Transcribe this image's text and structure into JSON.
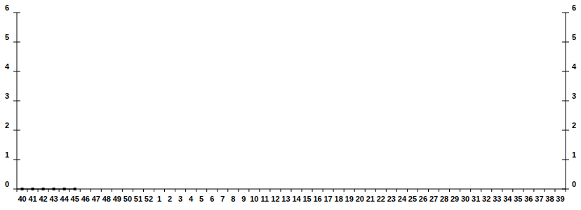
{
  "chart_data": {
    "type": "line",
    "categories": [
      "40",
      "41",
      "42",
      "43",
      "44",
      "45",
      "46",
      "47",
      "48",
      "49",
      "50",
      "51",
      "52",
      "1",
      "2",
      "3",
      "4",
      "5",
      "6",
      "7",
      "8",
      "9",
      "10",
      "11",
      "12",
      "13",
      "14",
      "15",
      "16",
      "17",
      "18",
      "19",
      "20",
      "21",
      "22",
      "23",
      "24",
      "25",
      "26",
      "27",
      "28",
      "29",
      "30",
      "31",
      "32",
      "33",
      "34",
      "35",
      "36",
      "37",
      "38",
      "39"
    ],
    "series": [
      {
        "color": "#000000",
        "marker": "square",
        "line_style": "solid",
        "values": [
          0,
          0,
          0,
          0,
          0,
          0,
          null,
          null,
          null,
          null,
          null,
          null,
          null,
          null,
          null,
          null,
          null,
          null,
          null,
          null,
          null,
          null,
          null,
          null,
          null,
          null,
          null,
          null,
          null,
          null,
          null,
          null,
          null,
          null,
          null,
          null,
          null,
          null,
          null,
          null,
          null,
          null,
          null,
          null,
          null,
          null,
          null,
          null,
          null,
          null,
          null,
          null
        ]
      }
    ],
    "ylim": [
      0,
      6
    ],
    "yticks": [
      0,
      1,
      2,
      3,
      4,
      5,
      6
    ],
    "y2lim": [
      0,
      6
    ],
    "y2ticks": [
      0,
      1,
      2,
      3,
      4,
      5,
      6
    ],
    "grid": false
  }
}
